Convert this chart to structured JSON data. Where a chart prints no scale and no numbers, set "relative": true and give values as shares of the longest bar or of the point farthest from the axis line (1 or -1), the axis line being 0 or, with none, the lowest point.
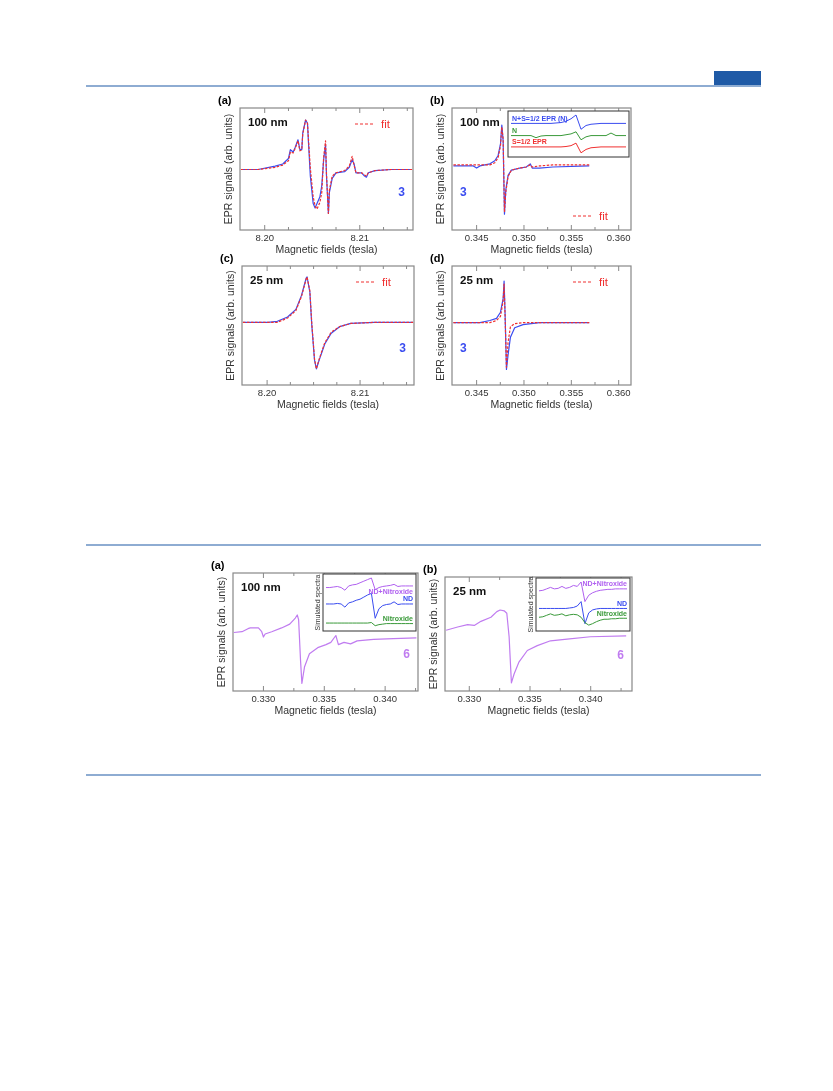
{
  "chart_data": [
    {
      "type": "line",
      "title": "(a)",
      "xlabel": "Magnetic fields (tesla)",
      "ylabel": "EPR signals (arb. units)",
      "annotations": [
        "100 nm"
      ],
      "relative": true,
      "legend": "top right",
      "xlim": [
        8.1974,
        8.2156
      ],
      "xticks": [
        {
          "value": 8.2,
          "label": "8.20"
        },
        {
          "value": 8.2025,
          "label": null
        },
        {
          "value": 8.205,
          "label": null
        },
        {
          "value": 8.2075,
          "label": null
        },
        {
          "value": 8.21,
          "label": "8.21"
        },
        {
          "value": 8.2125,
          "label": null
        },
        {
          "value": 8.215,
          "label": null
        }
      ],
      "x": [
        8.1975,
        8.1993,
        8.2011,
        8.2019,
        8.2025,
        8.2027,
        8.203,
        8.2032,
        8.2035,
        8.2037,
        8.2039,
        8.204,
        8.2043,
        8.2045,
        8.2046,
        8.2048,
        8.2051,
        8.2053,
        8.2055,
        8.2058,
        8.206,
        8.2062,
        8.2064,
        8.2065,
        8.2067,
        8.2068,
        8.2071,
        8.2075,
        8.2084,
        8.2089,
        8.2092,
        8.2094,
        8.2096,
        8.2102,
        8.2105,
        8.2107,
        8.2109,
        8.2116,
        8.2133,
        8.2155
      ],
      "series": [
        {
          "name": "3",
          "color": "#3a4cf0",
          "values": [
            0.55,
            0.55,
            0.58,
            0.6,
            0.65,
            0.73,
            0.71,
            0.75,
            0.82,
            0.73,
            0.73,
            0.88,
            1.0,
            0.97,
            0.8,
            0.49,
            0.24,
            0.2,
            0.24,
            0.3,
            0.4,
            0.64,
            0.78,
            0.49,
            0.15,
            0.34,
            0.47,
            0.52,
            0.53,
            0.57,
            0.64,
            0.6,
            0.52,
            0.52,
            0.49,
            0.48,
            0.52,
            0.54,
            0.55,
            0.55
          ]
        },
        {
          "name": "fit",
          "color": "#f03030",
          "line_style": "dashed",
          "values": [
            0.55,
            0.55,
            0.57,
            0.59,
            0.63,
            0.71,
            0.7,
            0.74,
            0.81,
            0.72,
            0.73,
            0.87,
            1.0,
            0.97,
            0.83,
            0.56,
            0.3,
            0.22,
            0.19,
            0.25,
            0.34,
            0.66,
            0.81,
            0.51,
            0.15,
            0.36,
            0.49,
            0.52,
            0.54,
            0.58,
            0.67,
            0.59,
            0.52,
            0.52,
            0.5,
            0.49,
            0.52,
            0.54,
            0.55,
            0.55
          ]
        }
      ]
    },
    {
      "type": "line",
      "title": "(b)",
      "xlabel": "Magnetic fields (tesla)",
      "ylabel": "EPR signals (arb. units)",
      "annotations": [
        "100 nm"
      ],
      "relative": true,
      "legend": "bottom right",
      "xlim": [
        0.3424,
        0.3613
      ],
      "xticks": [
        0.345,
        {
          "value": 0.3475,
          "label": null
        },
        {
          "value": 0.35,
          "label": "0.350"
        },
        {
          "value": 0.3525,
          "label": null
        },
        0.355,
        {
          "value": 0.3575,
          "label": null
        },
        {
          "value": 0.36,
          "label": "0.360"
        }
      ],
      "x": [
        0.34255,
        0.34465,
        0.345,
        0.34535,
        0.3464,
        0.34692,
        0.34727,
        0.34752,
        0.34766,
        0.3478,
        0.34794,
        0.34808,
        0.34832,
        0.34867,
        0.34955,
        0.35024,
        0.35066,
        0.35087,
        0.35164,
        0.35304,
        0.35689
      ],
      "series": [
        {
          "name": "3",
          "color": "#3a4cf0",
          "values": [
            0.61,
            0.61,
            0.59,
            0.61,
            0.63,
            0.66,
            0.71,
            0.82,
            1.0,
            0.85,
            0.15,
            0.38,
            0.52,
            0.57,
            0.59,
            0.6,
            0.63,
            0.59,
            0.59,
            0.6,
            0.61
          ]
        },
        {
          "name": "fit",
          "color": "#f03030",
          "line_style": "dashed",
          "values": [
            0.62,
            0.62,
            0.62,
            0.62,
            0.62,
            0.64,
            0.69,
            0.8,
            0.98,
            0.87,
            0.17,
            0.36,
            0.51,
            0.57,
            0.59,
            0.6,
            0.62,
            0.6,
            0.61,
            0.62,
            0.62
          ]
        }
      ]
    },
    {
      "type": "line",
      "relative": true,
      "categories": [
        null,
        null,
        null,
        null,
        null,
        null,
        null,
        null,
        null,
        null,
        null,
        null,
        null,
        null,
        null,
        null,
        null,
        null,
        null,
        null,
        null,
        null,
        null,
        null
      ],
      "series": [
        {
          "name": "N+S=1/2 EPR (N)",
          "color": "#3a4cf0",
          "values": [
            0.8,
            0.8,
            0.8,
            0.8,
            0.8,
            0.8,
            0.8,
            0.8,
            0.8,
            0.81,
            0.82,
            0.85,
            0.91,
            1.0,
            0.66,
            0.75,
            0.78,
            0.79,
            0.8,
            0.8,
            0.8,
            0.8,
            0.8,
            0.8
          ]
        },
        {
          "name": "N",
          "color": "#3a9a3a",
          "values": [
            0.51,
            0.51,
            0.51,
            0.51,
            0.51,
            0.46,
            0.5,
            0.51,
            0.51,
            0.51,
            0.51,
            0.53,
            0.55,
            0.6,
            0.41,
            0.48,
            0.51,
            0.51,
            0.51,
            0.51,
            0.57,
            0.51,
            0.51,
            0.51
          ]
        },
        {
          "name": "S=1/2 EPR",
          "color": "#f03030",
          "values": [
            0.24,
            0.24,
            0.24,
            0.24,
            0.24,
            0.24,
            0.24,
            0.24,
            0.24,
            0.24,
            0.24,
            0.25,
            0.27,
            0.33,
            0.1,
            0.18,
            0.22,
            0.23,
            0.24,
            0.24,
            0.24,
            0.24,
            0.24,
            0.24
          ]
        }
      ]
    },
    {
      "type": "line",
      "title": "(c)",
      "xlabel": "Magnetic fields (tesla)",
      "ylabel": "EPR signals (arb. units)",
      "annotations": [
        "25 nm"
      ],
      "relative": true,
      "legend": "top right",
      "xlim": [
        8.1973,
        8.2158
      ],
      "xticks": [
        {
          "value": 8.2,
          "label": "8.20"
        },
        {
          "value": 8.2025,
          "label": null
        },
        {
          "value": 8.205,
          "label": null
        },
        {
          "value": 8.2075,
          "label": null
        },
        {
          "value": 8.21,
          "label": "8.21"
        },
        {
          "value": 8.2125,
          "label": null
        },
        {
          "value": 8.215,
          "label": null
        }
      ],
      "x": [
        8.1974,
        8.2001,
        8.2011,
        8.2022,
        8.2031,
        8.2037,
        8.2042,
        8.2043,
        8.2046,
        8.2048,
        8.2051,
        8.2053,
        8.2056,
        8.2062,
        8.2069,
        8.2078,
        8.209,
        8.2115,
        8.2157
      ],
      "series": [
        {
          "name": "3",
          "color": "#3a4cf0",
          "values": [
            0.58,
            0.58,
            0.59,
            0.63,
            0.7,
            0.83,
            0.99,
            1.0,
            0.86,
            0.56,
            0.23,
            0.15,
            0.23,
            0.38,
            0.48,
            0.54,
            0.57,
            0.58,
            0.58
          ]
        },
        {
          "name": "fit",
          "color": "#f03030",
          "line_style": "dashed",
          "values": [
            0.58,
            0.58,
            0.58,
            0.62,
            0.69,
            0.82,
            0.98,
            1.0,
            0.87,
            0.58,
            0.24,
            0.15,
            0.24,
            0.39,
            0.49,
            0.54,
            0.57,
            0.58,
            0.58
          ]
        }
      ]
    },
    {
      "type": "line",
      "title": "(d)",
      "xlabel": "Magnetic fields (tesla)",
      "ylabel": "EPR signals (arb. units)",
      "annotations": [
        "25 nm"
      ],
      "relative": true,
      "legend": "top right",
      "xlim": [
        0.3424,
        0.3613
      ],
      "xticks": [
        0.345,
        {
          "value": 0.3475,
          "label": null
        },
        {
          "value": 0.35,
          "label": "0.350"
        },
        {
          "value": 0.3525,
          "label": null
        },
        0.355,
        {
          "value": 0.3575,
          "label": null
        },
        {
          "value": 0.36,
          "label": "0.360"
        }
      ],
      "x": [
        0.34255,
        0.34535,
        0.3464,
        0.3471,
        0.34752,
        0.3478,
        0.3479,
        0.348,
        0.34815,
        0.34832,
        0.34857,
        0.34902,
        0.3499,
        0.35164,
        0.35689
      ],
      "series": [
        {
          "name": "3",
          "color": "#3a4cf0",
          "values": [
            0.6,
            0.6,
            0.62,
            0.64,
            0.7,
            0.83,
            1.0,
            0.7,
            0.15,
            0.29,
            0.46,
            0.55,
            0.58,
            0.6,
            0.6
          ]
        },
        {
          "name": "fit",
          "color": "#f03030",
          "line_style": "dashed",
          "values": [
            0.6,
            0.6,
            0.6,
            0.62,
            0.66,
            0.81,
            0.97,
            0.68,
            0.17,
            0.41,
            0.56,
            0.59,
            0.6,
            0.6,
            0.6
          ]
        }
      ]
    },
    {
      "type": "line",
      "title": "(a)",
      "xlabel": "Magnetic fields (tesla)",
      "ylabel": "EPR signals (arb. units)",
      "annotations": [
        "100 nm"
      ],
      "relative": true,
      "xlim": [
        0.3275,
        0.3427
      ],
      "xticks": [
        {
          "value": 0.33,
          "label": "0.330"
        },
        {
          "value": 0.3325,
          "label": null
        },
        0.335,
        {
          "value": 0.3375,
          "label": null
        },
        {
          "value": 0.34,
          "label": "0.340"
        },
        {
          "value": 0.3425,
          "label": null
        }
      ],
      "x": [
        0.32757,
        0.32824,
        0.32873,
        0.32892,
        0.32959,
        0.32986,
        0.33,
        0.33014,
        0.33068,
        0.33149,
        0.33216,
        0.33262,
        0.33278,
        0.33289,
        0.33305,
        0.33316,
        0.33338,
        0.33378,
        0.33446,
        0.33514,
        0.33554,
        0.33595,
        0.33616,
        0.33662,
        0.33716,
        0.3377,
        0.33905,
        0.34068,
        0.34257
      ],
      "series": [
        {
          "name": "6",
          "color": "#c07cf0",
          "values": [
            0.77,
            0.78,
            0.82,
            0.83,
            0.83,
            0.78,
            0.71,
            0.75,
            0.78,
            0.83,
            0.88,
            0.96,
            1.0,
            0.94,
            0.4,
            0.1,
            0.32,
            0.49,
            0.57,
            0.61,
            0.64,
            0.73,
            0.61,
            0.64,
            0.62,
            0.66,
            0.68,
            0.69,
            0.7
          ]
        }
      ]
    },
    {
      "type": "line",
      "ylabel": "Simulated spectra",
      "relative": true,
      "categories": [
        null,
        null,
        null,
        null,
        null,
        null,
        null,
        null,
        null,
        null,
        null,
        null,
        null,
        null,
        null,
        null,
        null,
        null,
        null,
        null,
        null,
        null,
        null,
        null
      ],
      "series": [
        {
          "name": "ND+Nitroxide",
          "color": "#b060f0",
          "values": [
            0.82,
            0.82,
            0.83,
            0.84,
            0.82,
            0.77,
            0.85,
            0.87,
            0.88,
            0.91,
            0.94,
            0.97,
            1.0,
            0.78,
            0.82,
            0.84,
            0.85,
            0.86,
            0.88,
            0.84,
            0.85,
            0.85,
            0.85,
            0.85
          ]
        },
        {
          "name": "ND",
          "color": "#3a4cf0",
          "values": [
            0.51,
            0.51,
            0.51,
            0.52,
            0.51,
            0.45,
            0.53,
            0.55,
            0.58,
            0.6,
            0.64,
            0.68,
            0.71,
            0.24,
            0.42,
            0.48,
            0.5,
            0.51,
            0.55,
            0.5,
            0.51,
            0.51,
            0.51,
            0.51
          ]
        },
        {
          "name": "Nitroxide",
          "color": "#3a9a3a",
          "values": [
            0.15,
            0.15,
            0.15,
            0.15,
            0.15,
            0.15,
            0.15,
            0.15,
            0.15,
            0.15,
            0.15,
            0.15,
            0.16,
            0.1,
            0.12,
            0.13,
            0.14,
            0.14,
            0.14,
            0.14,
            0.14,
            0.14,
            0.14,
            0.14
          ]
        }
      ]
    },
    {
      "type": "line",
      "title": "(b)",
      "xlabel": "Magnetic fields (tesla)",
      "ylabel": "EPR signals (arb. units)",
      "annotations": [
        "25 nm"
      ],
      "relative": true,
      "xlim": [
        0.328,
        0.3434
      ],
      "xticks": [
        {
          "value": 0.33,
          "label": "0.330"
        },
        {
          "value": 0.3325,
          "label": null
        },
        0.335,
        {
          "value": 0.3375,
          "label": null
        },
        {
          "value": 0.34,
          "label": "0.340"
        },
        {
          "value": 0.3425,
          "label": null
        }
      ],
      "x": [
        0.32809,
        0.32904,
        0.32986,
        0.33041,
        0.33096,
        0.33178,
        0.33227,
        0.33254,
        0.33287,
        0.33309,
        0.33328,
        0.33347,
        0.33369,
        0.3341,
        0.33478,
        0.3356,
        0.33669,
        0.33806,
        0.33997,
        0.34292
      ],
      "series": [
        {
          "name": "6",
          "color": "#c07cf0",
          "values": [
            0.75,
            0.79,
            0.82,
            0.81,
            0.86,
            0.91,
            0.98,
            1.0,
            0.99,
            0.96,
            0.67,
            0.1,
            0.21,
            0.36,
            0.5,
            0.56,
            0.62,
            0.64,
            0.67,
            0.68
          ]
        }
      ]
    },
    {
      "type": "line",
      "ylabel": "Simulated spectra",
      "relative": true,
      "categories": [
        null,
        null,
        null,
        null,
        null,
        null,
        null,
        null,
        null,
        null,
        null,
        null,
        null,
        null,
        null,
        null,
        null,
        null,
        null,
        null,
        null,
        null,
        null,
        null
      ],
      "series": [
        {
          "name": "ND+Nitroxide",
          "color": "#b060f0",
          "values": [
            0.82,
            0.83,
            0.86,
            0.89,
            0.86,
            0.87,
            0.91,
            0.87,
            0.89,
            0.93,
            0.91,
            1.0,
            0.6,
            0.73,
            0.78,
            0.81,
            0.83,
            0.84,
            0.85,
            0.85,
            0.86,
            0.86,
            0.86,
            0.86
          ]
        },
        {
          "name": "ND",
          "color": "#3a4cf0",
          "values": [
            0.46,
            0.46,
            0.46,
            0.46,
            0.46,
            0.46,
            0.46,
            0.46,
            0.47,
            0.48,
            0.51,
            0.6,
            0.15,
            0.37,
            0.43,
            0.45,
            0.46,
            0.46,
            0.46,
            0.46,
            0.46,
            0.46,
            0.46,
            0.46
          ]
        },
        {
          "name": "Nitroxide",
          "color": "#3a9a3a",
          "values": [
            0.28,
            0.29,
            0.32,
            0.35,
            0.32,
            0.33,
            0.35,
            0.31,
            0.33,
            0.34,
            0.33,
            0.28,
            0.17,
            0.12,
            0.15,
            0.19,
            0.22,
            0.24,
            0.24,
            0.25,
            0.25,
            0.26,
            0.26,
            0.26
          ]
        }
      ]
    }
  ]
}
